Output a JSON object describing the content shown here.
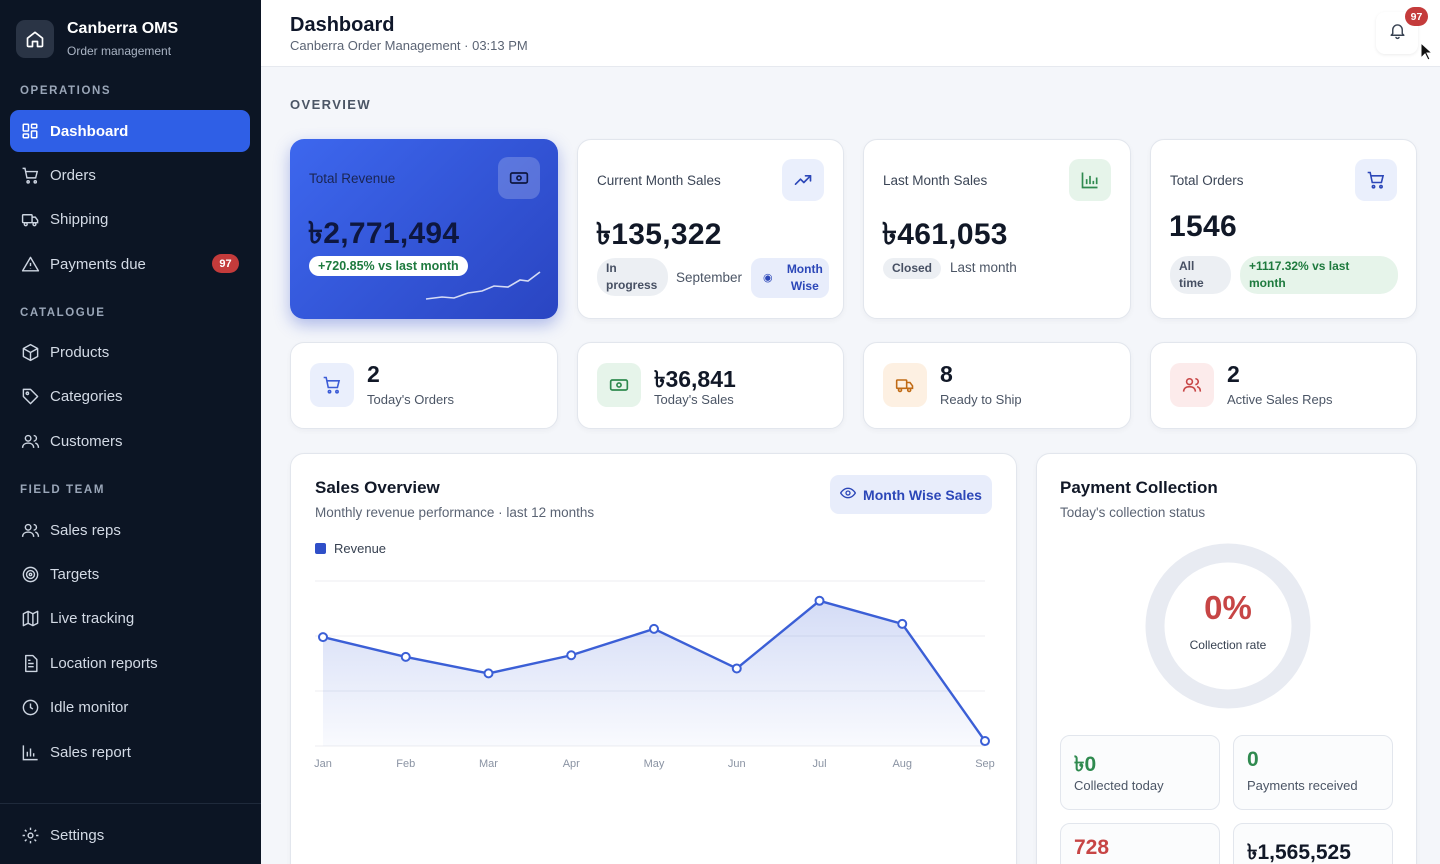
{
  "app": {
    "name": "Canberra OMS",
    "subtitle": "Order management"
  },
  "sidebar": {
    "sections": [
      {
        "label": "OPERATIONS",
        "items": [
          {
            "label": "Dashboard",
            "icon": "dashboard-icon",
            "active": true
          },
          {
            "label": "Orders",
            "icon": "cart-icon"
          },
          {
            "label": "Shipping",
            "icon": "truck-icon"
          },
          {
            "label": "Payments due",
            "icon": "warning-icon",
            "badge": "97"
          }
        ]
      },
      {
        "label": "CATALOGUE",
        "items": [
          {
            "label": "Products",
            "icon": "box-icon"
          },
          {
            "label": "Categories",
            "icon": "tag-icon"
          },
          {
            "label": "Customers",
            "icon": "users-icon"
          }
        ]
      },
      {
        "label": "FIELD TEAM",
        "items": [
          {
            "label": "Sales reps",
            "icon": "users-icon"
          },
          {
            "label": "Targets",
            "icon": "target-icon"
          },
          {
            "label": "Live tracking",
            "icon": "map-icon"
          },
          {
            "label": "Location reports",
            "icon": "file-icon"
          },
          {
            "label": "Idle monitor",
            "icon": "clock-icon"
          },
          {
            "label": "Sales report",
            "icon": "bar-chart-icon"
          }
        ]
      }
    ],
    "settings": "Settings"
  },
  "header": {
    "title": "Dashboard",
    "subtitle": "Canberra Order Management · 03:13 PM",
    "notifications": "97"
  },
  "overview": {
    "label": "OVERVIEW",
    "kpis": [
      {
        "label": "Total Revenue",
        "value": "৳2,771,494",
        "change": "+720.85% vs last month"
      },
      {
        "label": "Current Month Sales",
        "value": "৳135,322",
        "status": "In progress",
        "period": "September",
        "tag": "Month Wise"
      },
      {
        "label": "Last Month Sales",
        "value": "৳461,053",
        "status": "Closed",
        "period": "Last month"
      },
      {
        "label": "Total Orders",
        "value": "1546",
        "status": "All time",
        "change": "+1117.32% vs last month"
      }
    ],
    "mini": [
      {
        "value": "2",
        "label": "Today's Orders",
        "icon": "cart-icon",
        "color": "#3b5bd6"
      },
      {
        "value": "৳36,841",
        "label": "Today's Sales",
        "icon": "cash-icon",
        "color": "#2f8a4f"
      },
      {
        "value": "8",
        "label": "Ready to Ship",
        "icon": "truck-icon",
        "color": "#c06a14"
      },
      {
        "value": "2",
        "label": "Active Sales Reps",
        "icon": "users-icon",
        "color": "#c74545"
      }
    ]
  },
  "sales_overview": {
    "title": "Sales Overview",
    "subtitle": "Monthly revenue performance · last 12 months",
    "button": "Month Wise Sales",
    "legend": "Revenue"
  },
  "chart_data": {
    "type": "area",
    "categories": [
      "Jan",
      "Feb",
      "Mar",
      "Apr",
      "May",
      "Jun",
      "Jul",
      "Aug",
      "Sep"
    ],
    "series": [
      {
        "name": "Revenue",
        "values": [
          0.66,
          0.54,
          0.44,
          0.55,
          0.71,
          0.47,
          0.88,
          0.74,
          0.03
        ]
      }
    ],
    "ylim": [
      0,
      1
    ],
    "grid": true,
    "color": "#3b5fd6"
  },
  "payment": {
    "title": "Payment Collection",
    "subtitle": "Today's collection status",
    "rate": "0%",
    "rate_label": "Collection rate",
    "boxes": [
      {
        "value": "৳0",
        "label": "Collected today",
        "color": "#2f8a4f"
      },
      {
        "value": "0",
        "label": "Payments received",
        "color": "#2f8a4f"
      },
      {
        "value": "728",
        "label": "",
        "color": "#c74545"
      },
      {
        "value": "৳1,565,525",
        "label": "",
        "color": "#111827"
      }
    ]
  }
}
